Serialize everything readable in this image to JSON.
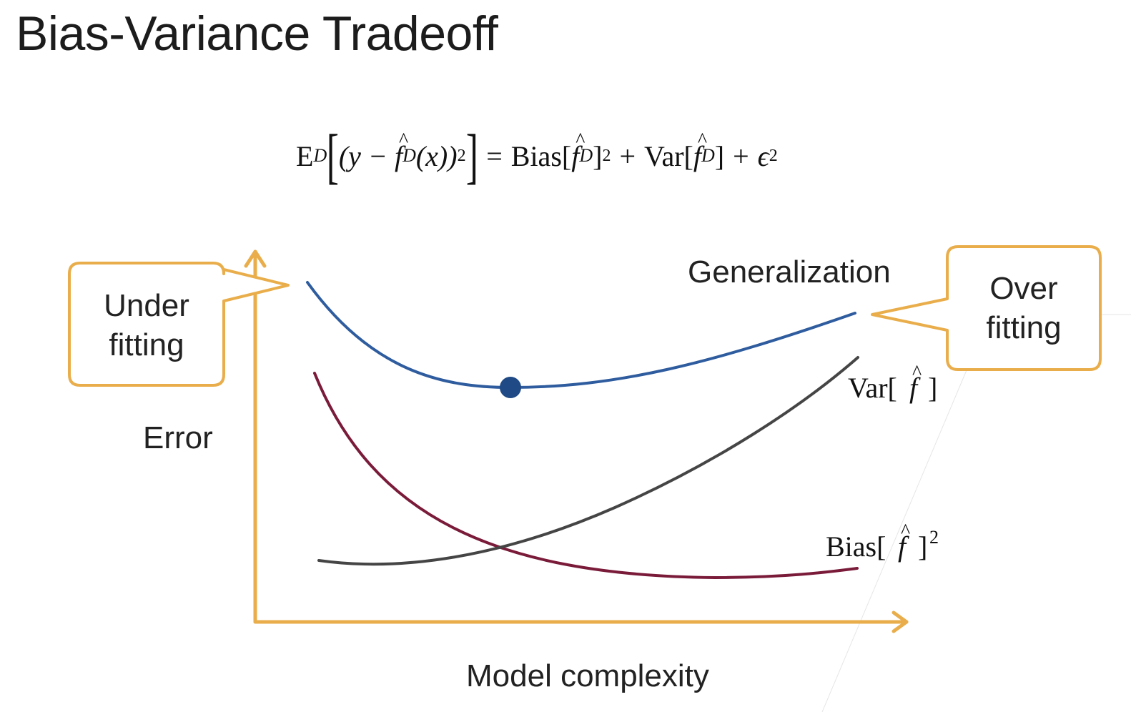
{
  "slide": {
    "title": "Bias-Variance Tradeoff"
  },
  "formula": {
    "expectation": "E",
    "subscript": "D",
    "inner_open": "(y −",
    "fhat": "f",
    "fhat_sub": "D",
    "inner_close": "(x))",
    "inner_power": "2",
    "equals": "=",
    "bias": "Bias[",
    "bias_close": "]",
    "bias_power": "2",
    "plus1": "+",
    "var": "Var[",
    "var_close": "]",
    "plus2": "+",
    "epsilon": "ϵ",
    "epsilon_power": "2"
  },
  "diagram": {
    "generalization_label": "Generalization",
    "error_label": "Error",
    "x_axis_label": "Model complexity",
    "var_label": "Var[",
    "var_label_close": "]",
    "bias_label": "Bias[",
    "bias_label_close": "]",
    "bias_label_power": "2",
    "fhat": "f",
    "callout_left_line1": "Under",
    "callout_left_line2": "fitting",
    "callout_right_line1": "Over",
    "callout_right_line2": "fitting"
  },
  "colors": {
    "axis": "#E9AE4B",
    "callout": "#E9AE4B",
    "generalization_curve": "#2E5C9E",
    "optimum_dot": "#1F4A85",
    "bias_curve": "#7A1B3A",
    "variance_curve": "#454545"
  }
}
